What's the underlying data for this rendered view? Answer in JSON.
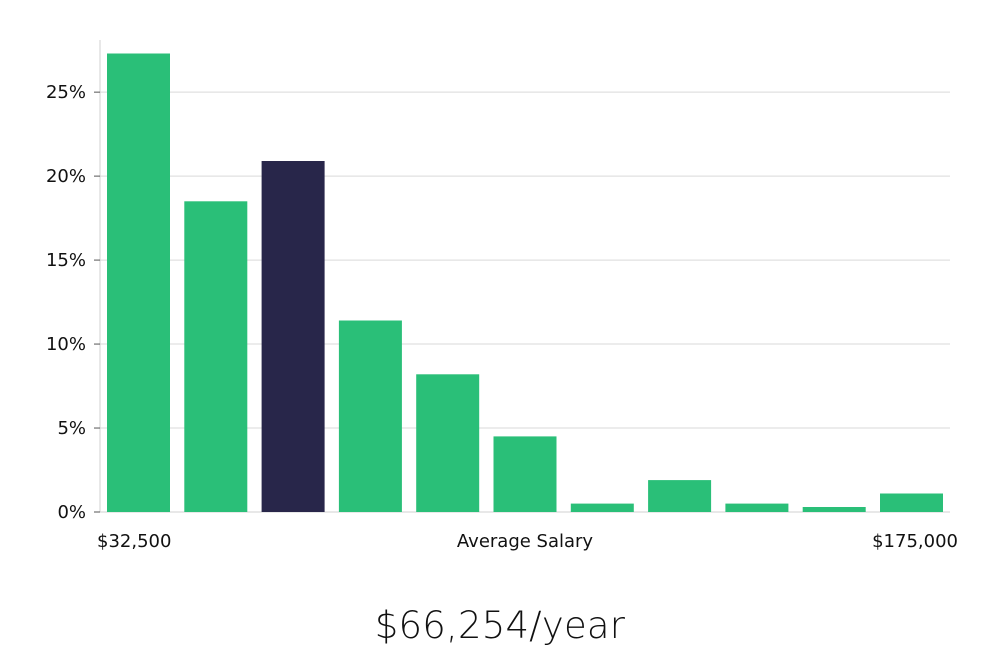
{
  "chart_data": {
    "type": "bar",
    "x_start_label": "$32,500",
    "x_end_label": "$175,000",
    "xlabel": "Average Salary",
    "ylabel": "",
    "ylim": [
      0,
      0.287
    ],
    "yticks": [
      0,
      0.05,
      0.1,
      0.15,
      0.2,
      0.25
    ],
    "ytick_labels": [
      "0%",
      "5%",
      "10%",
      "15%",
      "20%",
      "25%"
    ],
    "grid": "horizontal",
    "values": [
      0.273,
      0.185,
      0.209,
      0.114,
      0.082,
      0.045,
      0.005,
      0.019,
      0.005,
      0.003,
      0.011
    ],
    "highlight_index": 2,
    "colors": {
      "bar": "#2abf78",
      "highlight": "#28264a",
      "grid": "#d9d9d9",
      "axis": "#d0d0d0"
    }
  },
  "summary": {
    "average_salary": "$66,254/year"
  }
}
